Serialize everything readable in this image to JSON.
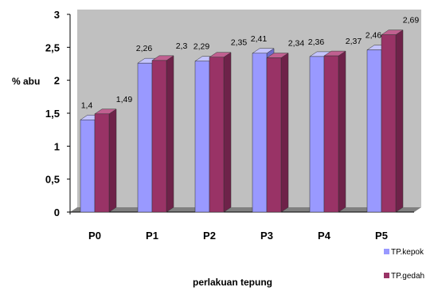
{
  "chart_data": {
    "type": "bar",
    "categories": [
      "P0",
      "P1",
      "P2",
      "P3",
      "P4",
      "P5"
    ],
    "series": [
      {
        "name": "TP.kepok",
        "values": [
          1.4,
          2.26,
          2.29,
          2.41,
          2.36,
          2.46
        ],
        "labels": [
          "1,4",
          "2,26",
          "2,29",
          "2,41",
          "2,36",
          "2,46"
        ]
      },
      {
        "name": "TP.gedah",
        "values": [
          1.49,
          2.3,
          2.35,
          2.34,
          2.37,
          2.69
        ],
        "labels": [
          "1,49",
          "2,3",
          "2,35",
          "2,34",
          "2,37",
          "2,69"
        ]
      }
    ],
    "yticks": [
      "0",
      "0,5",
      "1",
      "1,5",
      "2",
      "2,5",
      "3"
    ],
    "xlabel": "perlakuan  tepung",
    "ylabel": "% abu",
    "ylim": [
      0,
      3
    ],
    "grid": false,
    "legend": "bottom-right",
    "colors": {
      "kepok": "#9999ff",
      "kepok_dark": "#6c6ccc",
      "kepok_top": "#c4c4ff",
      "gedah": "#993366",
      "gedah_dark": "#6e2249",
      "gedah_top": "#c06090",
      "wall": "#c0c0c0",
      "floor": "#808080"
    }
  }
}
